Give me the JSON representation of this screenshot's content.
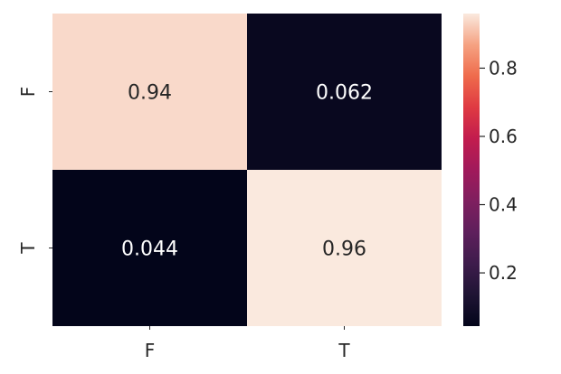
{
  "chart_data": {
    "type": "heatmap",
    "title": "",
    "xlabel": "",
    "ylabel": "",
    "x_categories": [
      "F",
      "T"
    ],
    "y_categories": [
      "F",
      "T"
    ],
    "values": [
      [
        0.94,
        0.062
      ],
      [
        0.044,
        0.96
      ]
    ],
    "cell_labels": [
      [
        "0.94",
        "0.062"
      ],
      [
        "0.044",
        "0.96"
      ]
    ],
    "colormap": "rocket",
    "colorbar": {
      "range": [
        0.044,
        0.96
      ],
      "ticks": [
        0.2,
        0.4,
        0.6,
        0.8
      ],
      "tick_labels": [
        "0.2",
        "0.4",
        "0.6",
        "0.8"
      ]
    },
    "colors": {
      "low": "#0d0a1d",
      "high": "#fae9de",
      "text_on_light": "#262626",
      "text_on_dark": "#ffffff"
    }
  }
}
